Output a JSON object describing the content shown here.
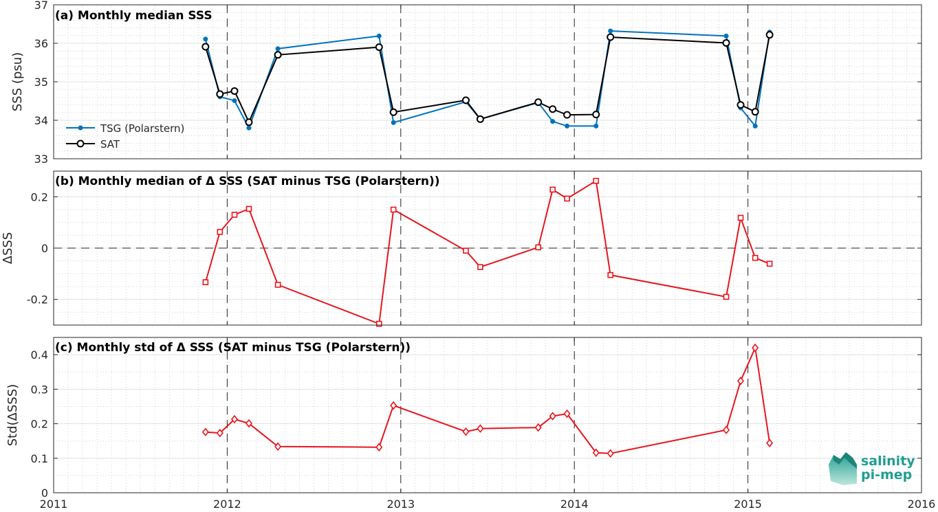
{
  "colors": {
    "tsg": "#0072BD",
    "sat": "#000000",
    "delta": "#e8141c",
    "logo": "#1f9e8f"
  },
  "logo": {
    "line1": "salinity",
    "line2": "pi-mep"
  },
  "x_ticks": [
    "2011",
    "2012",
    "2013",
    "2014",
    "2015",
    "2016"
  ],
  "chart_data": [
    {
      "type": "line",
      "title": "(a) Monthly median SSS",
      "ylabel": "SSS (psu)",
      "xlim": [
        2011,
        2016
      ],
      "ylim": [
        33,
        37
      ],
      "y_ticks": [
        "33",
        "34",
        "35",
        "36",
        "37"
      ],
      "grid": true,
      "legend": "lower-left",
      "x": [
        2011.875,
        2011.958,
        2012.042,
        2012.125,
        2012.292,
        2012.875,
        2012.958,
        2013.375,
        2013.458,
        2013.792,
        2013.875,
        2013.958,
        2014.125,
        2014.208,
        2014.875,
        2014.958,
        2015.042,
        2015.125
      ],
      "series": [
        {
          "name": "TSG (Polarstern)",
          "marker": "dot",
          "values": [
            36.11,
            34.61,
            34.51,
            33.8,
            35.86,
            36.19,
            33.94,
            34.48,
            34.03,
            34.46,
            33.97,
            33.85,
            33.85,
            36.32,
            36.19,
            34.32,
            33.85,
            36.29
          ]
        },
        {
          "name": "SAT",
          "marker": "circle",
          "values": [
            35.91,
            34.68,
            34.76,
            33.95,
            35.7,
            35.9,
            34.21,
            34.52,
            34.03,
            34.47,
            34.29,
            34.14,
            34.15,
            36.16,
            36.01,
            34.4,
            34.22,
            36.22
          ]
        }
      ]
    },
    {
      "type": "line",
      "title": "(b) Monthly median of Δ SSS (SAT minus TSG (Polarstern))",
      "ylabel": "ΔSSS",
      "xlim": [
        2011,
        2016
      ],
      "ylim": [
        -0.3,
        0.3
      ],
      "y_ticks": [
        "0.2",
        "0",
        "-0.2"
      ],
      "grid": true,
      "zero_line": true,
      "x": [
        2011.875,
        2011.958,
        2012.042,
        2012.125,
        2012.292,
        2012.875,
        2012.958,
        2013.375,
        2013.458,
        2013.792,
        2013.875,
        2013.958,
        2014.125,
        2014.208,
        2014.875,
        2014.958,
        2015.042,
        2015.125
      ],
      "series": [
        {
          "marker": "square",
          "values": [
            -0.133,
            0.063,
            0.13,
            0.153,
            -0.143,
            -0.295,
            0.15,
            -0.01,
            -0.074,
            0.003,
            0.228,
            0.193,
            0.262,
            -0.105,
            -0.19,
            0.118,
            -0.038,
            -0.061
          ]
        }
      ]
    },
    {
      "type": "line",
      "title": "(c) Monthly std of Δ SSS (SAT minus TSG (Polarstern))",
      "ylabel": "Std(ΔSSS)",
      "xlim": [
        2011,
        2016
      ],
      "ylim": [
        0,
        0.45
      ],
      "y_ticks": [
        "0",
        "0.1",
        "0.2",
        "0.3",
        "0.4"
      ],
      "grid": true,
      "x": [
        2011.875,
        2011.958,
        2012.042,
        2012.125,
        2012.292,
        2012.875,
        2012.958,
        2013.375,
        2013.458,
        2013.792,
        2013.875,
        2013.958,
        2014.125,
        2014.208,
        2014.875,
        2014.958,
        2015.042,
        2015.125
      ],
      "series": [
        {
          "marker": "diamond",
          "values": [
            0.176,
            0.173,
            0.213,
            0.201,
            0.134,
            0.132,
            0.253,
            0.177,
            0.186,
            0.189,
            0.222,
            0.229,
            0.116,
            0.114,
            0.182,
            0.324,
            0.42,
            0.144
          ]
        }
      ]
    }
  ]
}
